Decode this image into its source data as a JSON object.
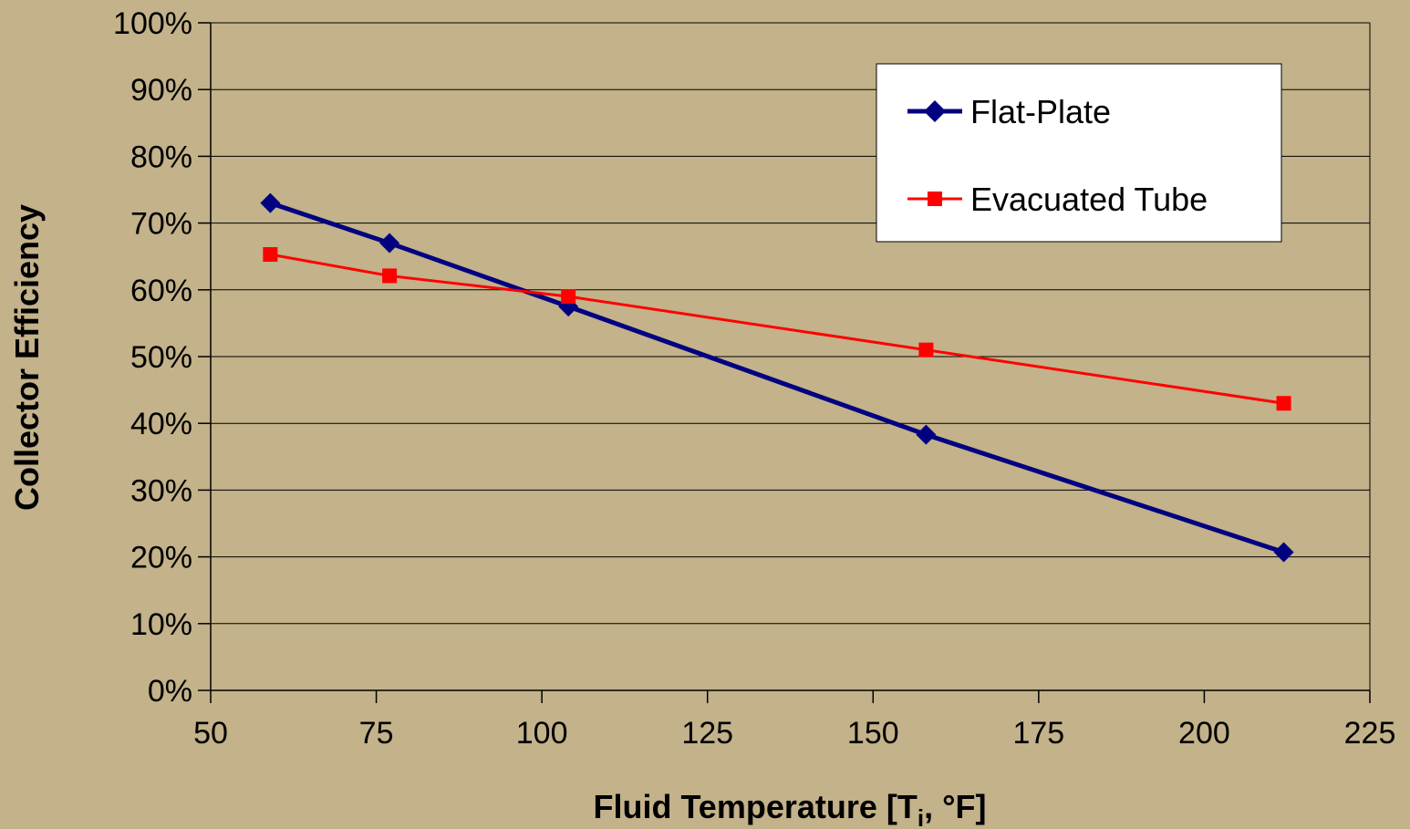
{
  "chart_data": {
    "type": "line",
    "xlabel_main": "Fluid Temperature [T",
    "xlabel_sub": "i",
    "xlabel_tail": ", °F]",
    "ylabel": "Collector Efficiency",
    "xlim": [
      50,
      225
    ],
    "ylim": [
      0,
      100
    ],
    "x_ticks": [
      50,
      75,
      100,
      125,
      150,
      175,
      200,
      225
    ],
    "y_ticks": [
      0,
      10,
      20,
      30,
      40,
      50,
      60,
      70,
      80,
      90,
      100
    ],
    "x_tick_labels": [
      "50",
      "75",
      "100",
      "125",
      "150",
      "175",
      "200",
      "225"
    ],
    "y_tick_labels": [
      "0%",
      "10%",
      "20%",
      "30%",
      "40%",
      "50%",
      "60%",
      "70%",
      "80%",
      "90%",
      "100%"
    ],
    "grid": "horizontal",
    "legend_position": "top-right",
    "series": [
      {
        "name": "Flat-Plate",
        "color": "#000080",
        "marker": "diamond",
        "x": [
          59,
          77,
          104,
          158,
          212
        ],
        "y": [
          73,
          67,
          57.5,
          38.3,
          20.7
        ]
      },
      {
        "name": "Evacuated Tube",
        "color": "#FF0000",
        "marker": "square",
        "x": [
          59,
          77,
          104,
          158,
          212
        ],
        "y": [
          65.3,
          62.1,
          59,
          51,
          43
        ]
      }
    ]
  }
}
